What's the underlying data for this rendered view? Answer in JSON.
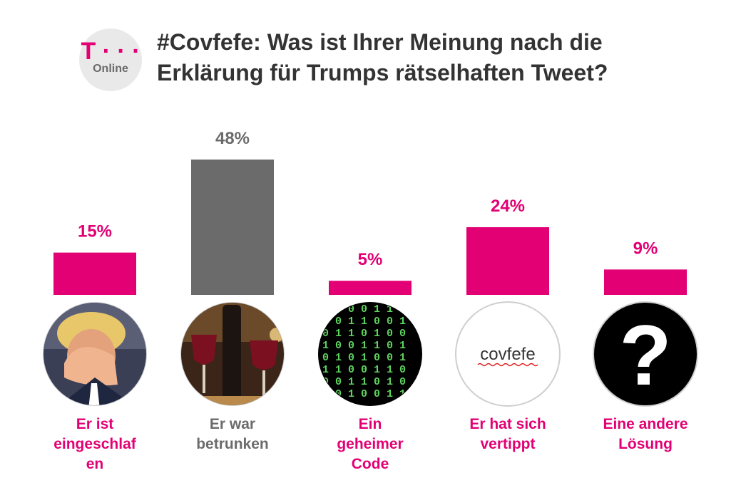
{
  "brand": {
    "t_mark": "T · · ·",
    "name": "Online",
    "color": "#e20074"
  },
  "chart_data": {
    "type": "bar",
    "title": "#Covfefe: Was ist Ihrer Meinung nach die Erklärung für Trumps rätselhaften Tweet?",
    "categories": [
      "Er ist eingeschlaf en",
      "Er war betrunken",
      "Ein geheimer Code",
      "Er hat sich vertippt",
      "Eine andere Lösung"
    ],
    "category_lines": [
      [
        "Er ist",
        "eingeschlaf",
        "en"
      ],
      [
        "Er war",
        "betrunken"
      ],
      [
        "Ein",
        "geheimer",
        "Code"
      ],
      [
        "Er hat sich",
        "vertippt"
      ],
      [
        "Eine andere",
        "Lösung"
      ]
    ],
    "values": [
      15,
      48,
      5,
      24,
      9
    ],
    "value_labels": [
      "15%",
      "48%",
      "5%",
      "24%",
      "9%"
    ],
    "colors": [
      "#e20074",
      "#6b6b6b",
      "#e20074",
      "#e20074",
      "#e20074"
    ],
    "icons": [
      "sleeping-trump-icon",
      "wine-glasses-icon",
      "binary-code-icon",
      "covfefe-text-icon",
      "question-mark-icon"
    ],
    "icon_texts": {
      "covfefe": "covfefe",
      "question": "?"
    },
    "ylim": [
      0,
      48
    ],
    "xlabel": "",
    "ylabel": ""
  }
}
